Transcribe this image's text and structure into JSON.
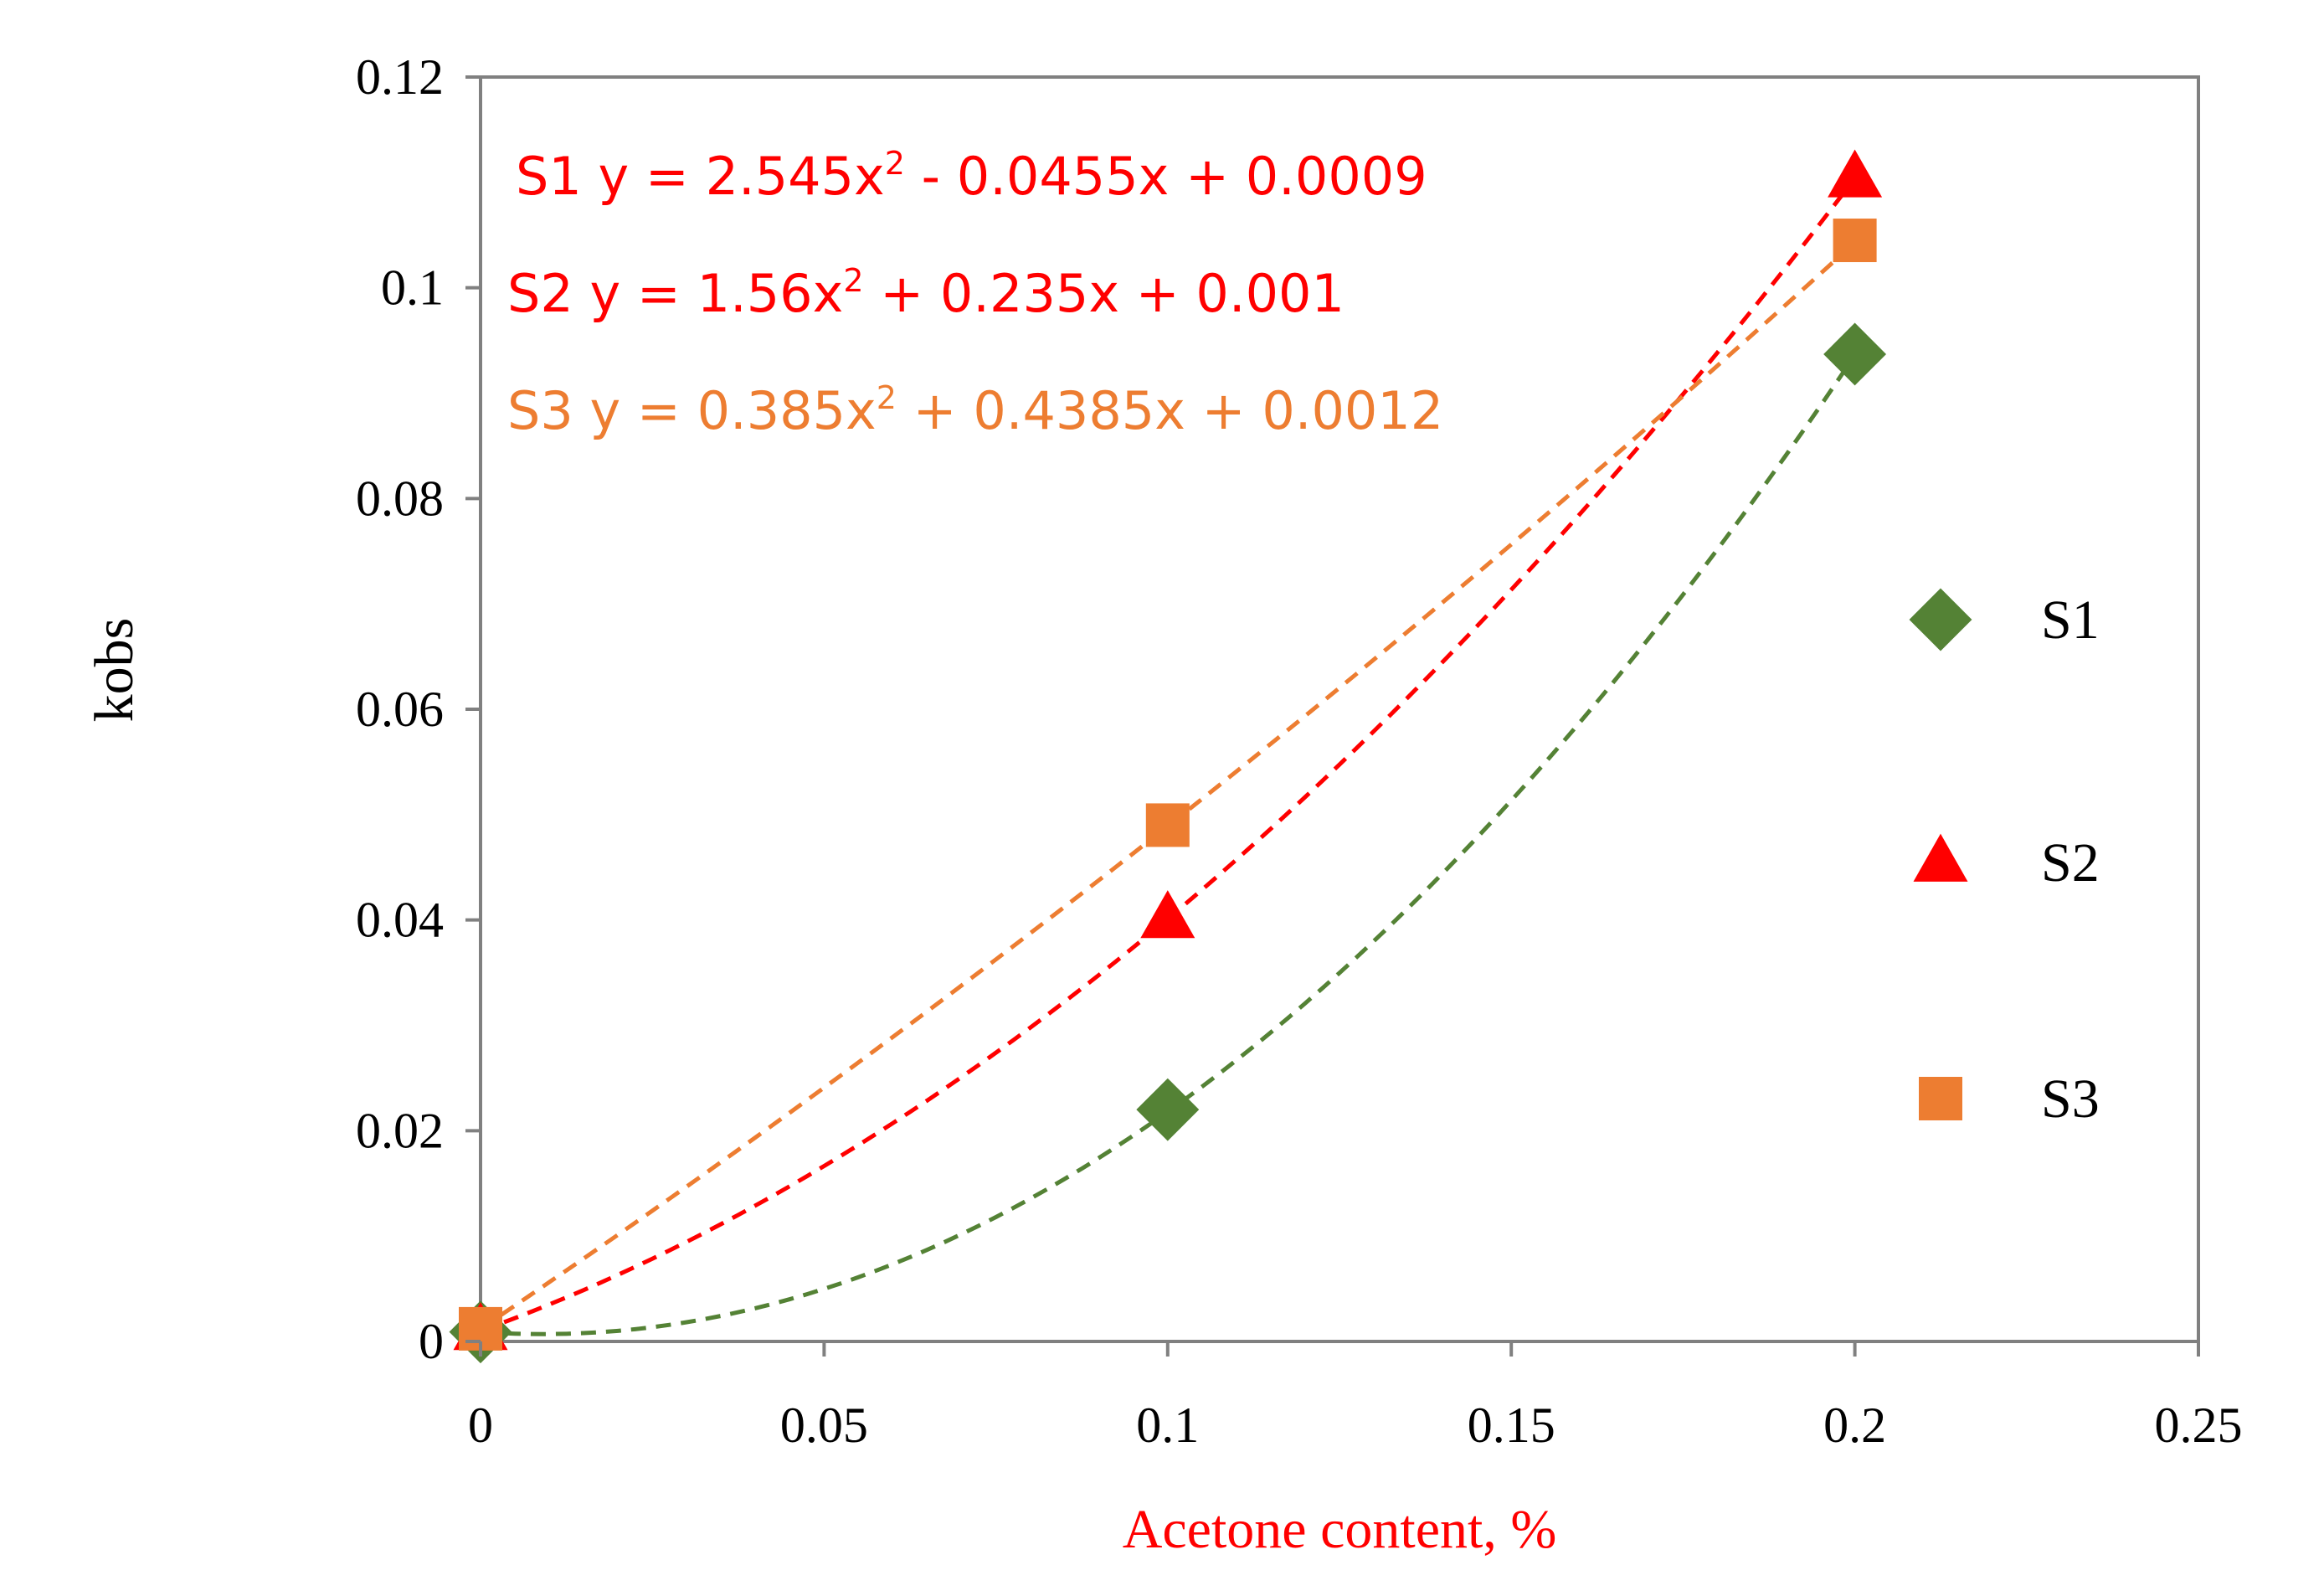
{
  "chart_data": {
    "type": "scatter",
    "title": "",
    "xlabel": "Acetone content, %",
    "ylabel": "kobs",
    "xlim": [
      0,
      0.25
    ],
    "ylim": [
      0,
      0.12
    ],
    "x_ticks": [
      0,
      0.05,
      0.1,
      0.15,
      0.2,
      0.25
    ],
    "x_tick_labels": [
      "0",
      "0.05",
      "0.1",
      "0.15",
      "0.2",
      "0.25"
    ],
    "y_ticks": [
      0,
      0.02,
      0.04,
      0.06,
      0.08,
      0.1,
      0.12
    ],
    "y_tick_labels": [
      "0",
      "0.02",
      "0.04",
      "0.06",
      "0.08",
      "0.1",
      "0.12"
    ],
    "grid": false,
    "legend_position": "right",
    "xlabel_color": "#ff0000",
    "ylabel_color": "#000000",
    "series": [
      {
        "name": "S1",
        "marker": "diamond",
        "color": "#548235",
        "x": [
          0,
          0.1,
          0.2
        ],
        "y": [
          0.0009,
          0.022,
          0.0937
        ],
        "trendline": {
          "type": "poly2",
          "a": 2.545,
          "b": -0.0455,
          "c": 0.0009
        },
        "equation": {
          "prefix": "S1 y = 2.545x",
          "sup": "2",
          "suffix": " - 0.0455x + 0.0009",
          "color": "#ff0000"
        }
      },
      {
        "name": "S2",
        "marker": "triangle",
        "color": "#ff0000",
        "x": [
          0,
          0.1,
          0.2
        ],
        "y": [
          0.001,
          0.0401,
          0.1104
        ],
        "trendline": {
          "type": "poly2",
          "a": 1.56,
          "b": 0.235,
          "c": 0.001
        },
        "equation": {
          "prefix": "S2 y = 1.56x",
          "sup": "2",
          "suffix": " + 0.235x + 0.001",
          "color": "#ff0000"
        }
      },
      {
        "name": "S3",
        "marker": "square",
        "color": "#ed7d31",
        "x": [
          0,
          0.1,
          0.2
        ],
        "y": [
          0.0012,
          0.049,
          0.1045
        ],
        "trendline": {
          "type": "poly2",
          "a": 0.385,
          "b": 0.4385,
          "c": 0.0012
        },
        "equation": {
          "prefix": "S3 y = 0.385x",
          "sup": "2",
          "suffix": " + 0.4385x + 0.0012",
          "color": "#ed7d31"
        }
      }
    ]
  }
}
